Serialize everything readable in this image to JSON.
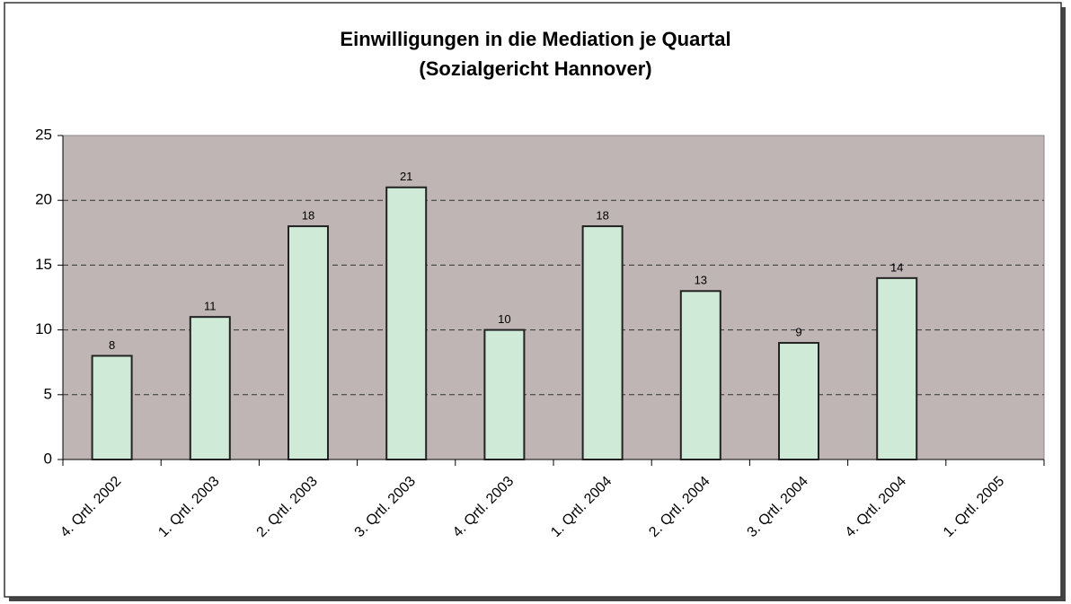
{
  "chart_data": {
    "type": "bar",
    "title": "Einwilligungen in die Mediation je Quartal",
    "subtitle": "(Sozialgericht Hannover)",
    "categories": [
      "4. Qrtl. 2002",
      "1. Qrtl. 2003",
      "2. Qrtl. 2003",
      "3. Qrtl. 2003",
      "4. Qrtl. 2003",
      "1. Qrtl. 2004",
      "2. Qrtl. 2004",
      "3. Qrtl. 2004",
      "4. Qrtl. 2004",
      "1. Qrtl. 2005"
    ],
    "values": [
      8,
      11,
      18,
      21,
      10,
      18,
      13,
      9,
      14,
      null
    ],
    "color": "#cfead7",
    "ylim": [
      0,
      25
    ],
    "yticks": [
      0,
      5,
      10,
      15,
      20,
      25
    ],
    "grid": true
  }
}
